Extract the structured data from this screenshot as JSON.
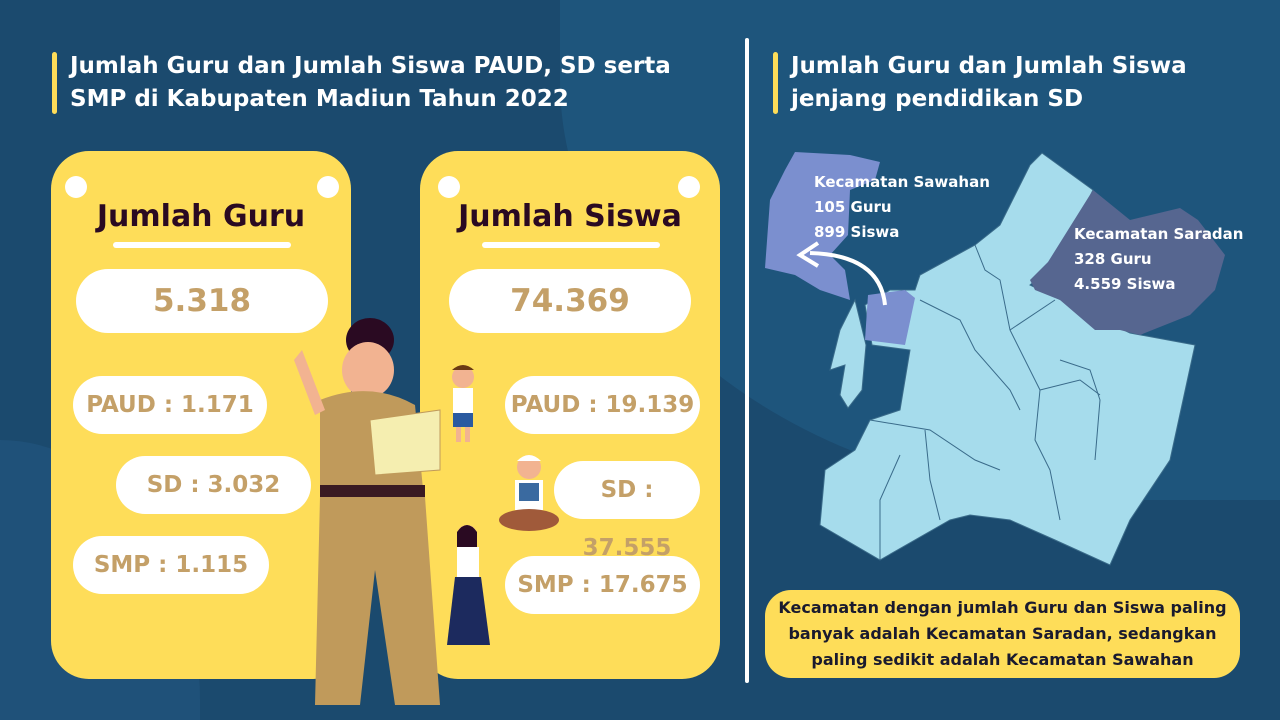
{
  "left_title": "Jumlah Guru dan Jumlah Siswa PAUD, SD serta SMP di Kabupaten Madiun Tahun 2022",
  "right_title": "Jumlah Guru dan Jumlah Siswa jenjang pendidikan SD",
  "guru_card": {
    "heading": "Jumlah Guru",
    "total": "5.318",
    "paud": "PAUD : 1.171",
    "sd": "SD : 3.032",
    "smp": "SMP : 1.115"
  },
  "siswa_card": {
    "heading": "Jumlah Siswa",
    "total": "74.369",
    "paud": "PAUD : 19.139",
    "sd": "SD : 37.555",
    "smp": "SMP : 17.675"
  },
  "map": {
    "sawahan": {
      "name": "Kecamatan Sawahan",
      "guru": "105 Guru",
      "siswa": "899 Siswa"
    },
    "saradan": {
      "name": "Kecamatan Saradan",
      "guru": "328 Guru",
      "siswa": "4.559 Siswa"
    }
  },
  "conclusion": "Kecamatan dengan jumlah Guru dan Siswa paling banyak adalah Kecamatan Saradan, sedangkan paling sedikit adalah Kecamatan Sawahan",
  "colors": {
    "background": "#1b4a6e",
    "card": "#fedd59",
    "number": "#c4a068",
    "map": "#a6dcec",
    "sawahan": "#7b8fcf",
    "saradan": "#566690"
  }
}
